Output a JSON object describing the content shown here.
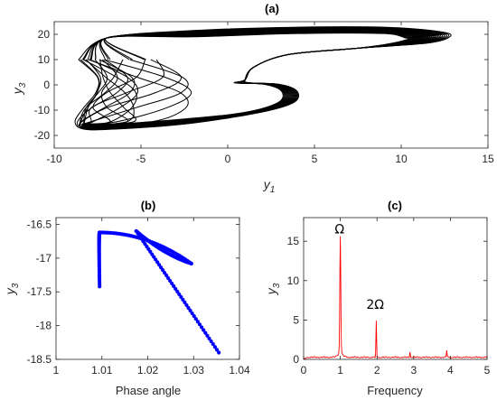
{
  "chart_data": [
    {
      "id": "a",
      "type": "line",
      "title": "(a)",
      "xlabel_main": "y",
      "xlabel_sub": "1",
      "ylabel_main": "y",
      "ylabel_sub": "3",
      "xlim": [
        -10,
        15
      ],
      "ylim": [
        -25,
        25
      ],
      "xticks": [
        -10,
        -5,
        0,
        5,
        10,
        15
      ],
      "yticks": [
        -20,
        -10,
        0,
        10,
        20
      ],
      "line_color": "#000000",
      "loop_count": 18,
      "description_points": {
        "outer_top": [
          [
            -8.5,
            10
          ],
          [
            -7,
            18
          ],
          [
            0,
            22
          ],
          [
            8,
            23
          ],
          [
            12,
            21
          ],
          [
            13,
            19
          ],
          [
            11,
            16
          ],
          [
            5,
            13
          ],
          [
            1,
            5
          ],
          [
            1,
            1
          ]
        ],
        "inner_return": [
          [
            1,
            1
          ],
          [
            3,
            0
          ],
          [
            4,
            -3
          ],
          [
            3.5,
            -8
          ],
          [
            1,
            -12
          ],
          [
            -4,
            -17
          ],
          [
            -8,
            -18
          ],
          [
            -9,
            -14
          ],
          [
            -8,
            -5
          ],
          [
            -7,
            5
          ],
          [
            -8.5,
            10
          ]
        ]
      }
    },
    {
      "id": "b",
      "type": "scatter",
      "title": "(b)",
      "xlabel": "Phase angle",
      "ylabel_main": "y",
      "ylabel_sub": "3",
      "xlim": [
        1,
        1.04
      ],
      "ylim": [
        -18.5,
        -16.4
      ],
      "xticks": [
        "1",
        "1.01",
        "1.02",
        "1.03",
        "1.04"
      ],
      "yticks": [
        "-16.5",
        "-17",
        "-17.5",
        "-18",
        "-18.5"
      ],
      "color": "#0000ff",
      "segments": [
        {
          "from": [
            1.0095,
            -17.42
          ],
          "via": [
            1.0093,
            -16.62
          ],
          "to": [
            1.0095,
            -16.62
          ]
        },
        {
          "from": [
            1.0095,
            -16.62
          ],
          "via": [
            1.02,
            -16.62
          ],
          "to": [
            1.0295,
            -17.08
          ]
        },
        {
          "from": [
            1.0175,
            -16.6
          ],
          "via": [
            1.0235,
            -16.95
          ],
          "to": [
            1.0295,
            -17.08
          ]
        },
        {
          "from": [
            1.0175,
            -16.6
          ],
          "via": [
            1.026,
            -17.45
          ],
          "to": [
            1.0355,
            -18.4
          ]
        }
      ]
    },
    {
      "id": "c",
      "type": "line",
      "title": "(c)",
      "xlabel": "Frequency",
      "ylabel_main": "y",
      "ylabel_sub": "3",
      "xlim": [
        0,
        5
      ],
      "ylim": [
        0,
        18
      ],
      "xticks": [
        0,
        1,
        2,
        3,
        4,
        5
      ],
      "yticks": [
        0,
        5,
        10,
        15
      ],
      "color": "#ff0000",
      "peaks": [
        {
          "x": 1.0,
          "y": 14.2
        },
        {
          "x": 1.98,
          "y": 4.6
        },
        {
          "x": 2.9,
          "y": 0.7
        },
        {
          "x": 3.9,
          "y": 0.9
        }
      ],
      "baseline": 0.35,
      "annotations": [
        {
          "text": "Ω",
          "x": 0.98,
          "y": 16.0
        },
        {
          "text": "2Ω",
          "x": 1.95,
          "y": 6.4
        }
      ]
    }
  ]
}
